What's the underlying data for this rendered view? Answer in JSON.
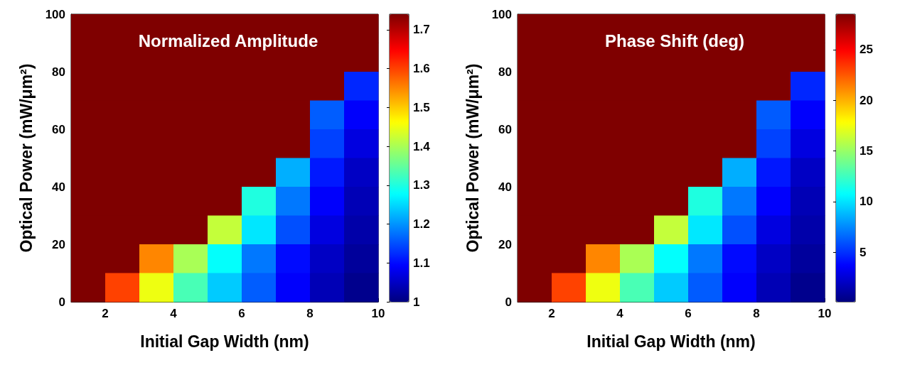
{
  "chart_data": [
    {
      "type": "heatmap",
      "title": "Normalized Amplitude",
      "xlabel": "Initial Gap Width (nm)",
      "ylabel": "Optical Power (mW/μm²)",
      "xlim": [
        1,
        10
      ],
      "xticks": [
        2,
        4,
        6,
        8,
        10
      ],
      "ylim": [
        0,
        100
      ],
      "yticks": [
        0,
        20,
        40,
        60,
        80,
        100
      ],
      "clim": [
        1,
        1.74
      ],
      "cticks": [
        1,
        1.1,
        1.2,
        1.3,
        1.4,
        1.5,
        1.6,
        1.7
      ],
      "x": [
        1.5,
        2.5,
        3.5,
        4.5,
        5.5,
        6.5,
        7.5,
        8.5,
        9.5
      ],
      "y": [
        95,
        85,
        75,
        65,
        55,
        45,
        35,
        25,
        15,
        5
      ],
      "cells": [
        [
          1.74,
          1.74,
          1.74,
          1.74,
          1.74,
          1.74,
          1.74,
          1.74,
          1.74
        ],
        [
          1.74,
          1.74,
          1.74,
          1.74,
          1.74,
          1.74,
          1.74,
          1.74,
          1.74
        ],
        [
          1.74,
          1.74,
          1.74,
          1.74,
          1.74,
          1.74,
          1.74,
          1.74,
          1.12
        ],
        [
          1.74,
          1.74,
          1.74,
          1.74,
          1.74,
          1.74,
          1.74,
          1.16,
          1.09
        ],
        [
          1.74,
          1.74,
          1.74,
          1.74,
          1.74,
          1.74,
          1.74,
          1.14,
          1.07
        ],
        [
          1.74,
          1.74,
          1.74,
          1.74,
          1.74,
          1.74,
          1.22,
          1.11,
          1.05
        ],
        [
          1.74,
          1.74,
          1.74,
          1.74,
          1.74,
          1.3,
          1.18,
          1.09,
          1.04
        ],
        [
          1.74,
          1.74,
          1.74,
          1.74,
          1.42,
          1.26,
          1.15,
          1.07,
          1.03
        ],
        [
          1.74,
          1.74,
          1.55,
          1.4,
          1.28,
          1.18,
          1.1,
          1.05,
          1.02
        ],
        [
          1.74,
          1.6,
          1.45,
          1.33,
          1.24,
          1.16,
          1.09,
          1.04,
          1.01
        ]
      ]
    },
    {
      "type": "heatmap",
      "title": "Phase Shift (deg)",
      "xlabel": "Initial Gap Width (nm)",
      "ylabel": "Optical Power (mW/μm²)",
      "xlim": [
        1,
        10
      ],
      "xticks": [
        2,
        4,
        6,
        8,
        10
      ],
      "ylim": [
        0,
        100
      ],
      "yticks": [
        0,
        20,
        40,
        60,
        80,
        100
      ],
      "clim": [
        0.1,
        28.5
      ],
      "cticks": [
        5,
        10,
        15,
        20,
        25
      ],
      "x": [
        1.5,
        2.5,
        3.5,
        4.5,
        5.5,
        6.5,
        7.5,
        8.5,
        9.5
      ],
      "y": [
        95,
        85,
        75,
        65,
        55,
        45,
        35,
        25,
        15,
        5
      ],
      "cells": [
        [
          28.5,
          28.5,
          28.5,
          28.5,
          28.5,
          28.5,
          28.5,
          28.5,
          28.5
        ],
        [
          28.5,
          28.5,
          28.5,
          28.5,
          28.5,
          28.5,
          28.5,
          28.5,
          28.5
        ],
        [
          28.5,
          28.5,
          28.5,
          28.5,
          28.5,
          28.5,
          28.5,
          28.5,
          4.7
        ],
        [
          28.5,
          28.5,
          28.5,
          28.5,
          28.5,
          28.5,
          28.5,
          6.2,
          3.6
        ],
        [
          28.5,
          28.5,
          28.5,
          28.5,
          28.5,
          28.5,
          28.5,
          5.5,
          2.8
        ],
        [
          28.5,
          28.5,
          28.5,
          28.5,
          28.5,
          28.5,
          8.5,
          4.3,
          2
        ],
        [
          28.5,
          28.5,
          28.5,
          28.5,
          28.5,
          11.6,
          7,
          3.6,
          1.6
        ],
        [
          28.5,
          28.5,
          28.5,
          28.5,
          16.2,
          10.1,
          5.9,
          2.8,
          1.3
        ],
        [
          28.5,
          28.5,
          21.2,
          15.5,
          10.8,
          7,
          3.9,
          2,
          0.9
        ],
        [
          28.5,
          23.1,
          17.4,
          12.8,
          9.3,
          6.2,
          3.6,
          1.6,
          0.5
        ]
      ]
    }
  ]
}
